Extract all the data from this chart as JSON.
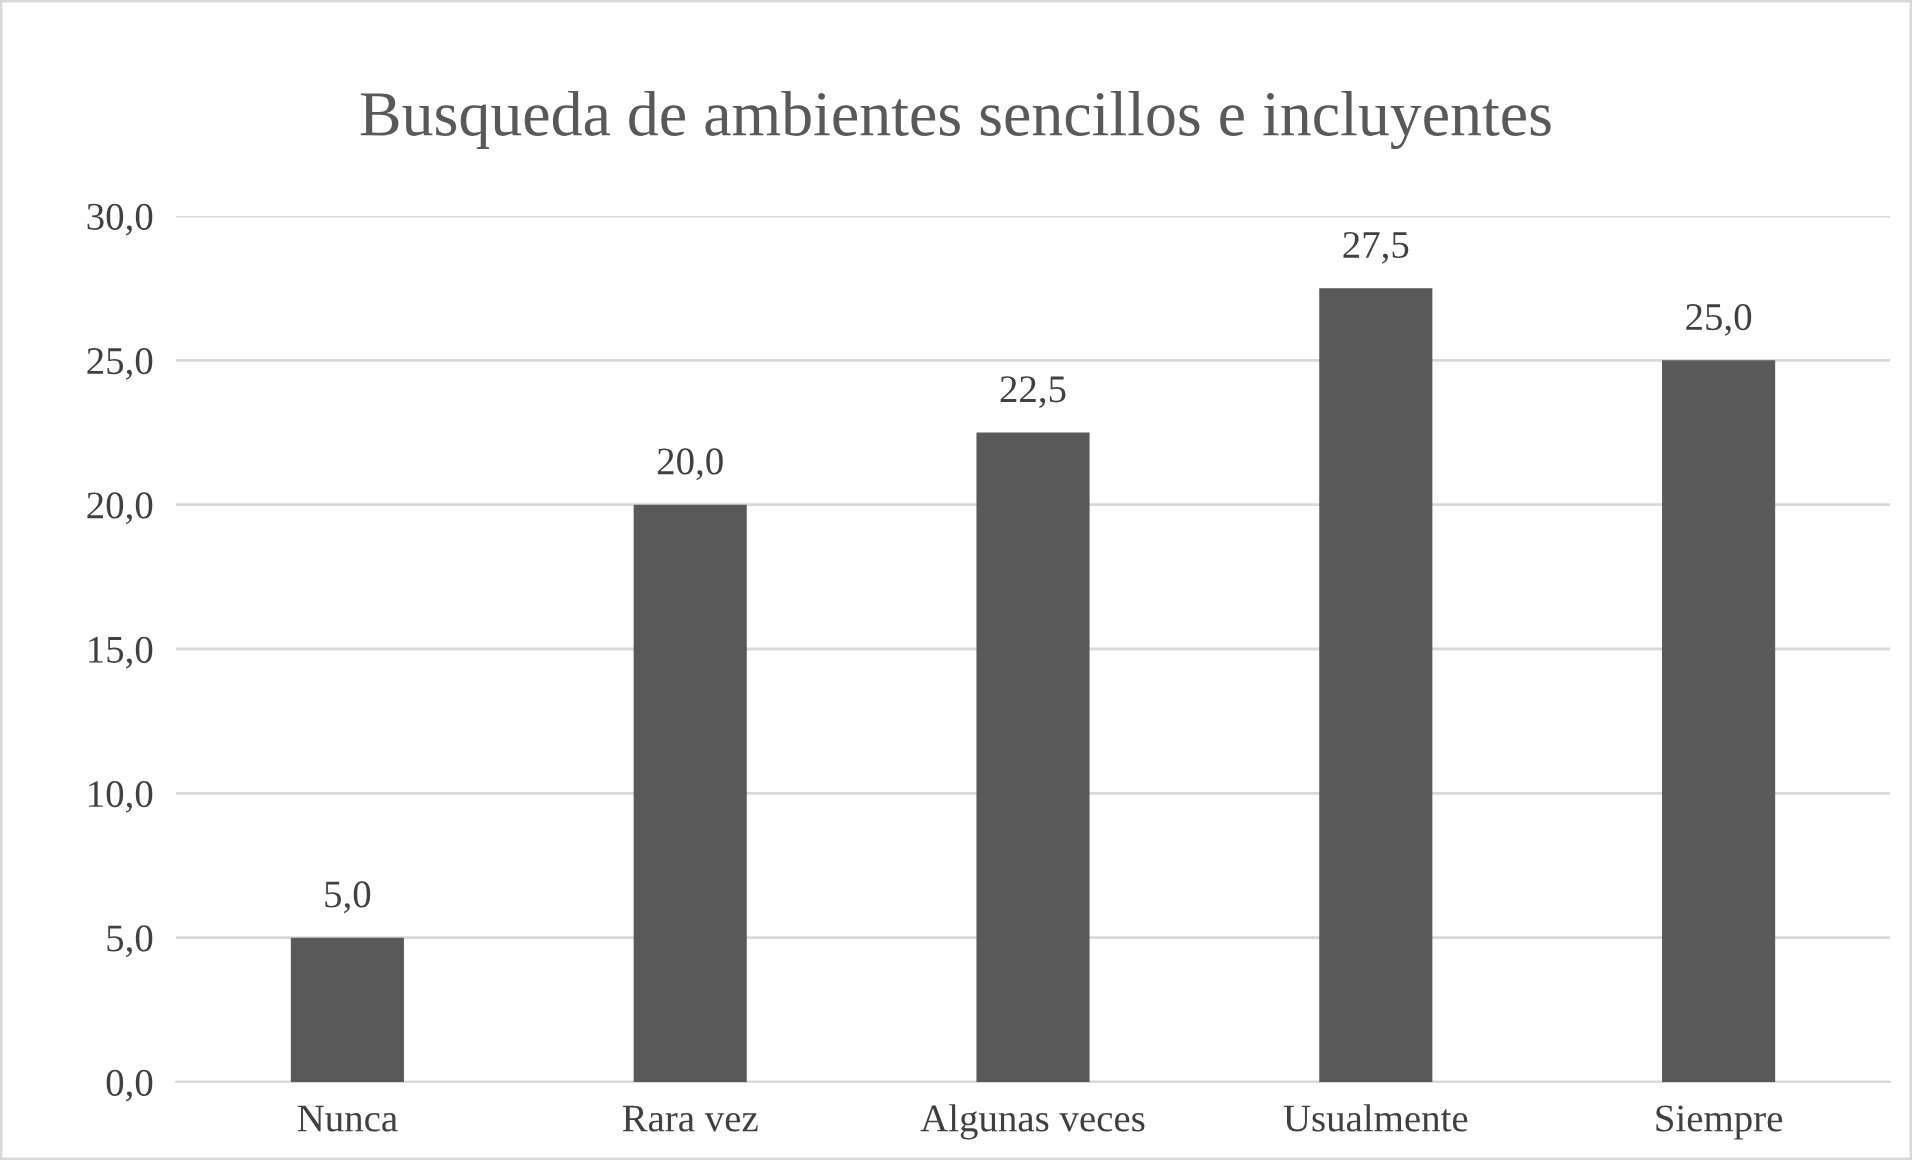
{
  "chart_data": {
    "type": "bar",
    "title": "Busqueda de ambientes sencillos e incluyentes",
    "categories": [
      "Nunca",
      "Rara vez",
      "Algunas veces",
      "Usualmente",
      "Siempre"
    ],
    "values": [
      5.0,
      20.0,
      22.5,
      27.5,
      25.0
    ],
    "value_labels": [
      "5,0",
      "20,0",
      "22,5",
      "27,5",
      "25,0"
    ],
    "color": "#595959",
    "ylim": [
      0,
      30
    ],
    "yticks": [
      {
        "value": 0,
        "label": "0,0"
      },
      {
        "value": 5,
        "label": "5,0"
      },
      {
        "value": 10,
        "label": "10,0"
      },
      {
        "value": 15,
        "label": "15,0"
      },
      {
        "value": 20,
        "label": "20,0"
      },
      {
        "value": 25,
        "label": "25,0"
      },
      {
        "value": 30,
        "label": "30,0"
      }
    ],
    "grid": "y",
    "legend": false
  }
}
